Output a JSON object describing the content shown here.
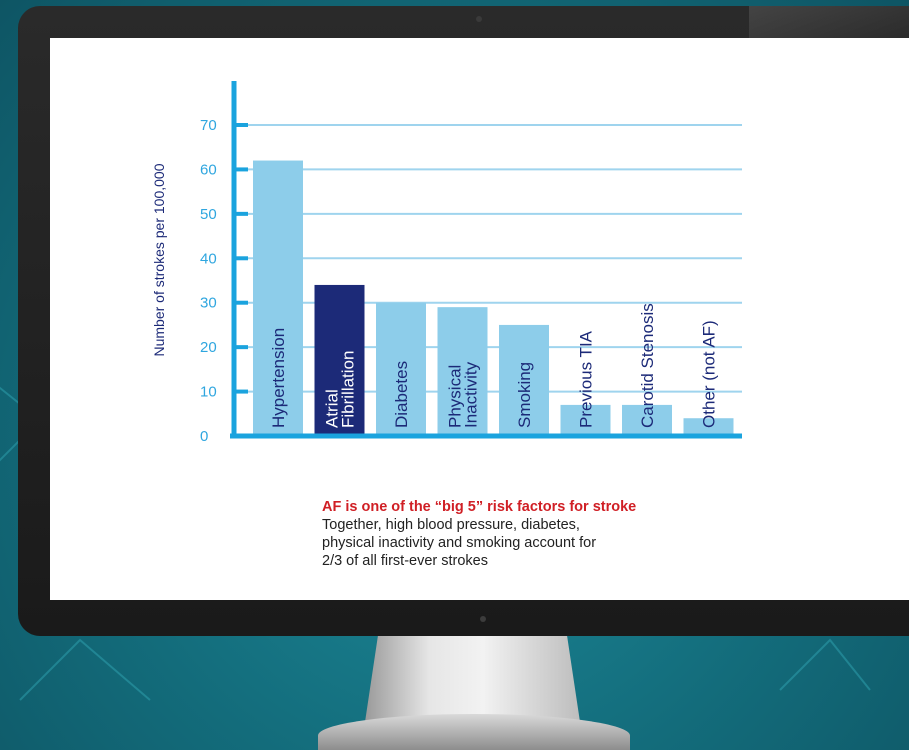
{
  "chart_data": {
    "type": "bar",
    "ylabel": "Number of strokes per 100,000",
    "ylim": [
      0,
      70
    ],
    "yticks": [
      0,
      10,
      20,
      30,
      40,
      50,
      60,
      70
    ],
    "grid": true,
    "categories": [
      "Hypertension",
      "Atrial Fibrillation",
      "Diabetes",
      "Physical Inactivity",
      "Smoking",
      "Previous TIA",
      "Carotid Stenosis",
      "Other (not AF)"
    ],
    "category_lines": [
      [
        "Hypertension"
      ],
      [
        "Atrial",
        "Fibrillation"
      ],
      [
        "Diabetes"
      ],
      [
        "Physical",
        "Inactivity"
      ],
      [
        "Smoking"
      ],
      [
        "Previous TIA"
      ],
      [
        "Carotid Stenosis"
      ],
      [
        "Other (not AF)"
      ]
    ],
    "values": [
      62,
      34,
      30,
      29,
      25,
      7,
      7,
      4
    ],
    "highlight_index": 1,
    "colors": {
      "bar": "#8dcdea",
      "highlight": "#1c2a78",
      "axis": "#1aa3de",
      "grid": "#9fd4ee",
      "tick_text": "#2fa6df",
      "ylabel": "#1c2a78",
      "bar_text": "#1c2a78",
      "highlight_text": "#ffffff"
    }
  },
  "caption": {
    "headline": "AF is one of the “big 5” risk factors for stroke",
    "body_lines": [
      "Together, high blood pressure, diabetes,",
      "physical inactivity and smoking account for",
      "2/3 of all first-ever strokes"
    ]
  }
}
